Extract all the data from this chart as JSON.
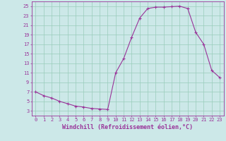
{
  "x": [
    0,
    1,
    2,
    3,
    4,
    5,
    6,
    7,
    8,
    9,
    10,
    11,
    12,
    13,
    14,
    15,
    16,
    17,
    18,
    19,
    20,
    21,
    22,
    23
  ],
  "y": [
    7.0,
    6.2,
    5.7,
    5.0,
    4.5,
    4.0,
    3.8,
    3.5,
    3.4,
    3.3,
    11.0,
    14.0,
    18.5,
    22.5,
    24.5,
    24.8,
    24.8,
    24.9,
    25.0,
    24.5,
    19.5,
    17.0,
    11.5,
    10.0
  ],
  "line_color": "#993399",
  "marker": "+",
  "marker_size": 3.5,
  "line_width": 0.8,
  "bg_color": "#cce8e8",
  "grid_color": "#99ccbb",
  "xlabel": "Windchill (Refroidissement éolien,°C)",
  "xlim": [
    -0.5,
    23.5
  ],
  "ylim": [
    2,
    26
  ],
  "xticks": [
    0,
    1,
    2,
    3,
    4,
    5,
    6,
    7,
    8,
    9,
    10,
    11,
    12,
    13,
    14,
    15,
    16,
    17,
    18,
    19,
    20,
    21,
    22,
    23
  ],
  "yticks": [
    3,
    5,
    7,
    9,
    11,
    13,
    15,
    17,
    19,
    21,
    23,
    25
  ],
  "tick_color": "#993399",
  "tick_fontsize": 5.0,
  "xlabel_fontsize": 6.0,
  "axis_color": "#993399"
}
